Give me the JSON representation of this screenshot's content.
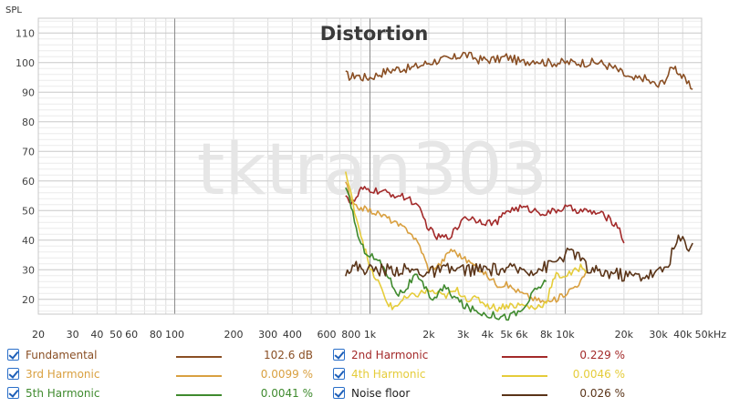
{
  "chart_data": {
    "type": "line",
    "title": "Distortion",
    "ylabel": "SPL",
    "xlabel": "",
    "x_unit": "Hz",
    "x_scale": "log",
    "xlim": [
      20,
      50000
    ],
    "ylim": [
      15,
      115
    ],
    "grid": true,
    "watermark": "tktran303",
    "x_ticks": [
      {
        "v": 20,
        "label": "20"
      },
      {
        "v": 30,
        "label": "30"
      },
      {
        "v": 40,
        "label": "40"
      },
      {
        "v": 50,
        "label": "50"
      },
      {
        "v": 60,
        "label": "60"
      },
      {
        "v": 80,
        "label": "80"
      },
      {
        "v": 100,
        "label": "100"
      },
      {
        "v": 200,
        "label": "200"
      },
      {
        "v": 300,
        "label": "300"
      },
      {
        "v": 400,
        "label": "400"
      },
      {
        "v": 600,
        "label": "600"
      },
      {
        "v": 800,
        "label": "800"
      },
      {
        "v": 1000,
        "label": "1k"
      },
      {
        "v": 2000,
        "label": "2k"
      },
      {
        "v": 3000,
        "label": "3k"
      },
      {
        "v": 4000,
        "label": "4k"
      },
      {
        "v": 5000,
        "label": "5k"
      },
      {
        "v": 6000,
        "label": "6k"
      },
      {
        "v": 8000,
        "label": "8k"
      },
      {
        "v": 10000,
        "label": "10k"
      },
      {
        "v": 20000,
        "label": "20k"
      },
      {
        "v": 30000,
        "label": "30k"
      },
      {
        "v": 40000,
        "label": "40k"
      },
      {
        "v": 50000,
        "label": "50kHz"
      }
    ],
    "y_ticks": [
      20,
      30,
      40,
      50,
      60,
      70,
      80,
      90,
      100,
      110
    ],
    "series": [
      {
        "name": "Fundamental",
        "value": "102.6 dB",
        "color": "#8a4f24",
        "jitter": 1.5,
        "points": [
          [
            750,
            96
          ],
          [
            800,
            95
          ],
          [
            850,
            96
          ],
          [
            900,
            95
          ],
          [
            1000,
            95
          ],
          [
            1100,
            96
          ],
          [
            1200,
            97
          ],
          [
            1400,
            98
          ],
          [
            1600,
            98
          ],
          [
            1800,
            99
          ],
          [
            2000,
            100
          ],
          [
            2300,
            101
          ],
          [
            2600,
            101
          ],
          [
            3000,
            103
          ],
          [
            3300,
            102
          ],
          [
            3600,
            101
          ],
          [
            4000,
            101
          ],
          [
            4500,
            101
          ],
          [
            5000,
            102
          ],
          [
            5500,
            101
          ],
          [
            6000,
            100
          ],
          [
            7000,
            101
          ],
          [
            8000,
            100
          ],
          [
            9000,
            100
          ],
          [
            10000,
            100
          ],
          [
            12000,
            100
          ],
          [
            15000,
            100
          ],
          [
            18000,
            98
          ],
          [
            20000,
            96
          ],
          [
            22000,
            94
          ],
          [
            25000,
            95
          ],
          [
            28000,
            93
          ],
          [
            30000,
            92
          ],
          [
            33000,
            95
          ],
          [
            36000,
            99
          ],
          [
            38000,
            97
          ],
          [
            42000,
            93
          ],
          [
            45000,
            91
          ]
        ]
      },
      {
        "name": "2nd Harmonic",
        "value": "0.229 %",
        "color": "#a32a2a",
        "jitter": 1.2,
        "points": [
          [
            750,
            56
          ],
          [
            800,
            52
          ],
          [
            850,
            54
          ],
          [
            900,
            57
          ],
          [
            1000,
            57
          ],
          [
            1200,
            56
          ],
          [
            1400,
            55
          ],
          [
            1600,
            54
          ],
          [
            1800,
            50
          ],
          [
            2000,
            44
          ],
          [
            2200,
            41
          ],
          [
            2500,
            41
          ],
          [
            2800,
            44
          ],
          [
            3000,
            48
          ],
          [
            3500,
            47
          ],
          [
            4000,
            46
          ],
          [
            4500,
            46
          ],
          [
            5000,
            50
          ],
          [
            6000,
            51
          ],
          [
            7000,
            50
          ],
          [
            8000,
            49
          ],
          [
            9000,
            50
          ],
          [
            10000,
            51
          ],
          [
            12000,
            50
          ],
          [
            15000,
            49
          ],
          [
            17000,
            47
          ],
          [
            19000,
            44
          ],
          [
            20000,
            39
          ]
        ]
      },
      {
        "name": "3rd Harmonic",
        "value": "0.0099 %",
        "color": "#d9a040",
        "jitter": 1.0,
        "points": [
          [
            750,
            60
          ],
          [
            800,
            53
          ],
          [
            850,
            51
          ],
          [
            900,
            51
          ],
          [
            1000,
            50
          ],
          [
            1200,
            48
          ],
          [
            1400,
            45
          ],
          [
            1600,
            43
          ],
          [
            1800,
            38
          ],
          [
            2000,
            30
          ],
          [
            2300,
            32
          ],
          [
            2600,
            37
          ],
          [
            3000,
            34
          ],
          [
            3500,
            31
          ],
          [
            4000,
            28
          ],
          [
            4500,
            25
          ],
          [
            5000,
            25
          ],
          [
            6000,
            22
          ],
          [
            7000,
            20
          ],
          [
            8000,
            19
          ],
          [
            9000,
            20
          ],
          [
            10000,
            22
          ],
          [
            11000,
            24
          ],
          [
            12000,
            26
          ],
          [
            13000,
            29
          ]
        ]
      },
      {
        "name": "4th Harmonic",
        "value": "0.0046 %",
        "color": "#e5cc3a",
        "jitter": 1.2,
        "points": [
          [
            750,
            63
          ],
          [
            800,
            55
          ],
          [
            850,
            48
          ],
          [
            900,
            42
          ],
          [
            950,
            36
          ],
          [
            1000,
            30
          ],
          [
            1100,
            26
          ],
          [
            1200,
            20
          ],
          [
            1300,
            17
          ],
          [
            1500,
            20
          ],
          [
            1800,
            22
          ],
          [
            2000,
            23
          ],
          [
            2400,
            21
          ],
          [
            2800,
            23
          ],
          [
            3200,
            20
          ],
          [
            3600,
            20
          ],
          [
            4000,
            18
          ],
          [
            4500,
            17
          ],
          [
            5000,
            18
          ],
          [
            6000,
            18
          ],
          [
            7000,
            17
          ],
          [
            8000,
            19
          ],
          [
            8500,
            25
          ],
          [
            9000,
            28
          ],
          [
            10000,
            28
          ],
          [
            11000,
            29
          ],
          [
            12000,
            31
          ],
          [
            13000,
            30
          ]
        ]
      },
      {
        "name": "5th Harmonic",
        "value": "0.0041 %",
        "color": "#3f8a2e",
        "jitter": 1.3,
        "points": [
          [
            750,
            57
          ],
          [
            800,
            52
          ],
          [
            850,
            44
          ],
          [
            900,
            38
          ],
          [
            1000,
            35
          ],
          [
            1100,
            33
          ],
          [
            1200,
            30
          ],
          [
            1300,
            25
          ],
          [
            1400,
            22
          ],
          [
            1500,
            23
          ],
          [
            1700,
            28
          ],
          [
            1900,
            24
          ],
          [
            2100,
            20
          ],
          [
            2400,
            24
          ],
          [
            2700,
            21
          ],
          [
            3000,
            18
          ],
          [
            3500,
            16
          ],
          [
            4000,
            15
          ],
          [
            5000,
            14
          ],
          [
            6000,
            16
          ],
          [
            7000,
            23
          ],
          [
            8000,
            26
          ]
        ]
      },
      {
        "name": "Noise floor",
        "value": "0.026 %",
        "color": "#5a3418",
        "jitter": 2.2,
        "points": [
          [
            750,
            30
          ],
          [
            850,
            31
          ],
          [
            1000,
            30
          ],
          [
            1200,
            30
          ],
          [
            1500,
            30
          ],
          [
            2000,
            29
          ],
          [
            2500,
            30
          ],
          [
            3000,
            30
          ],
          [
            4000,
            30
          ],
          [
            5000,
            30
          ],
          [
            6000,
            30
          ],
          [
            7000,
            30
          ],
          [
            8000,
            31
          ],
          [
            9000,
            33
          ],
          [
            10000,
            35
          ],
          [
            11000,
            36
          ],
          [
            12000,
            34
          ],
          [
            13000,
            30
          ],
          [
            15000,
            29
          ],
          [
            18000,
            29
          ],
          [
            20000,
            28
          ],
          [
            25000,
            28
          ],
          [
            30000,
            29
          ],
          [
            33000,
            31
          ],
          [
            36000,
            37
          ],
          [
            38000,
            40
          ],
          [
            40000,
            40
          ],
          [
            42000,
            38
          ],
          [
            45000,
            39
          ]
        ]
      }
    ]
  },
  "legend": {
    "items": [
      {
        "name": "Fundamental",
        "value": "102.6 dB",
        "color": "#8a4f24"
      },
      {
        "name": "2nd Harmonic",
        "value": "0.229 %",
        "color": "#a32a2a"
      },
      {
        "name": "3rd Harmonic",
        "value": "0.0099 %",
        "color": "#d9a040"
      },
      {
        "name": "4th Harmonic",
        "value": "0.0046 %",
        "color": "#e5cc3a"
      },
      {
        "name": "5th Harmonic",
        "value": "0.0041 %",
        "color": "#3f8a2e"
      },
      {
        "name": "Noise floor",
        "value": "0.026 %",
        "color": "#5a3418"
      }
    ]
  }
}
